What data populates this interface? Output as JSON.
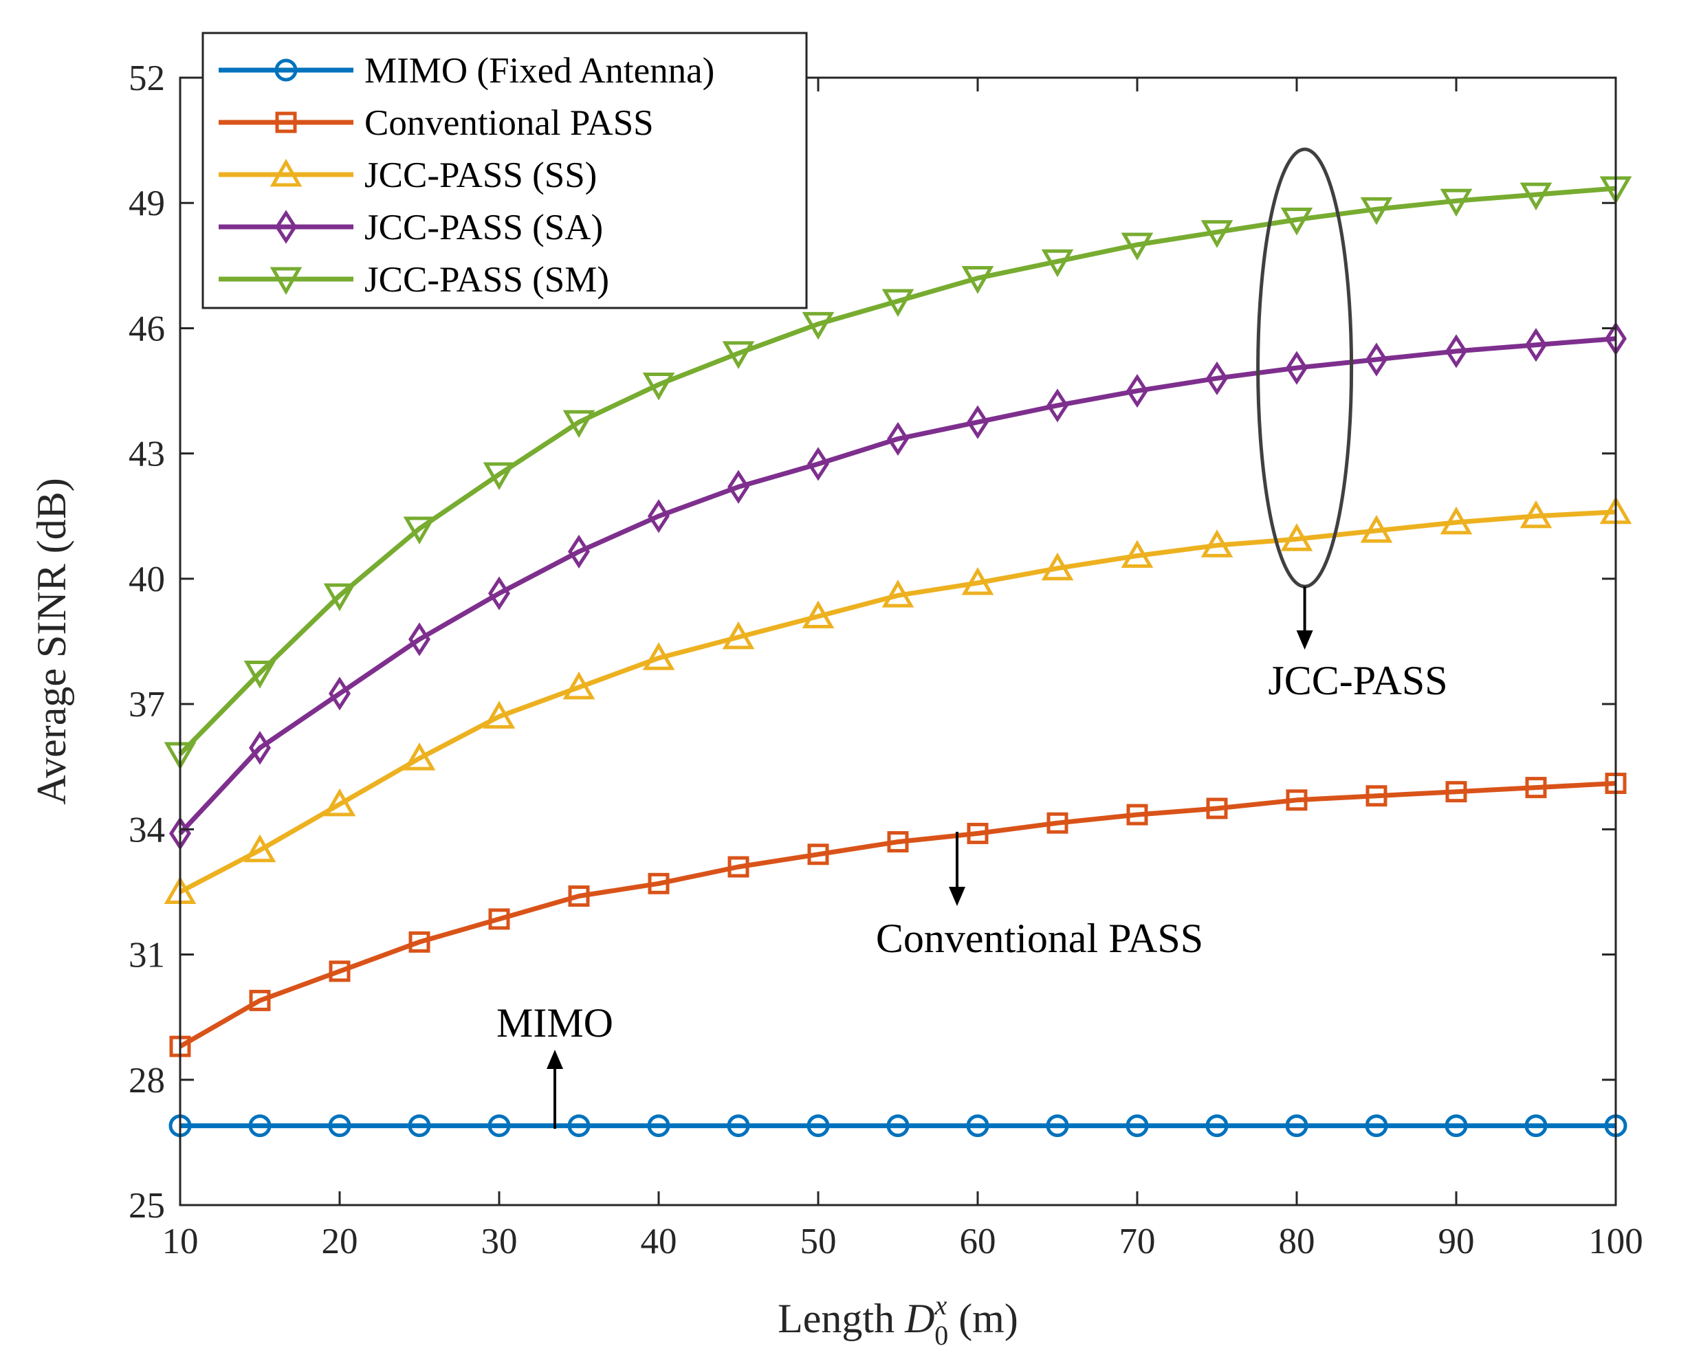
{
  "chart_data": {
    "type": "line",
    "xlabel": {
      "prefix": "Length ",
      "symbol": "D",
      "sup": "x",
      "sub": "0",
      "suffix": " (m)"
    },
    "ylabel": "Average SINR (dB)",
    "xlim": [
      10,
      100
    ],
    "ylim": [
      25,
      52
    ],
    "xticks": [
      10,
      20,
      30,
      40,
      50,
      60,
      70,
      80,
      90,
      100
    ],
    "yticks": [
      25,
      28,
      31,
      34,
      37,
      40,
      43,
      46,
      49,
      52
    ],
    "grid": false,
    "legend_position": "top-left",
    "x": [
      10,
      15,
      20,
      25,
      30,
      35,
      40,
      45,
      50,
      55,
      60,
      65,
      70,
      75,
      80,
      85,
      90,
      95,
      100
    ],
    "series": [
      {
        "name": "MIMO (Fixed Antenna)",
        "color": "#0072BD",
        "marker": "circle",
        "values": [
          26.9,
          26.9,
          26.9,
          26.9,
          26.9,
          26.9,
          26.9,
          26.9,
          26.9,
          26.9,
          26.9,
          26.9,
          26.9,
          26.9,
          26.9,
          26.9,
          26.9,
          26.9,
          26.9
        ]
      },
      {
        "name": "Conventional PASS",
        "color": "#D95319",
        "marker": "square",
        "values": [
          28.8,
          29.9,
          30.6,
          31.3,
          31.85,
          32.4,
          32.7,
          33.1,
          33.4,
          33.7,
          33.9,
          34.15,
          34.35,
          34.5,
          34.7,
          34.8,
          34.9,
          35.0,
          35.1
        ]
      },
      {
        "name": "JCC-PASS (SS)",
        "color": "#EDB120",
        "marker": "triangle-up",
        "values": [
          32.5,
          33.5,
          34.6,
          35.7,
          36.7,
          37.4,
          38.1,
          38.6,
          39.1,
          39.6,
          39.9,
          40.25,
          40.55,
          40.8,
          40.95,
          41.15,
          41.35,
          41.5,
          41.6
        ]
      },
      {
        "name": "JCC-PASS (SA)",
        "color": "#7E2F8E",
        "marker": "diamond",
        "values": [
          33.9,
          35.95,
          37.25,
          38.55,
          39.65,
          40.65,
          41.5,
          42.2,
          42.75,
          43.35,
          43.75,
          44.15,
          44.5,
          44.8,
          45.05,
          45.25,
          45.45,
          45.6,
          45.75
        ]
      },
      {
        "name": "JCC-PASS (SM)",
        "color": "#77AC30",
        "marker": "triangle-down",
        "values": [
          35.8,
          37.75,
          39.6,
          41.2,
          42.5,
          43.75,
          44.65,
          45.4,
          46.1,
          46.65,
          47.2,
          47.6,
          48.0,
          48.3,
          48.6,
          48.85,
          49.05,
          49.2,
          49.35
        ]
      }
    ],
    "annotations": [
      {
        "text": "JCC-PASS"
      },
      {
        "text": "Conventional PASS"
      },
      {
        "text": "MIMO"
      }
    ]
  }
}
